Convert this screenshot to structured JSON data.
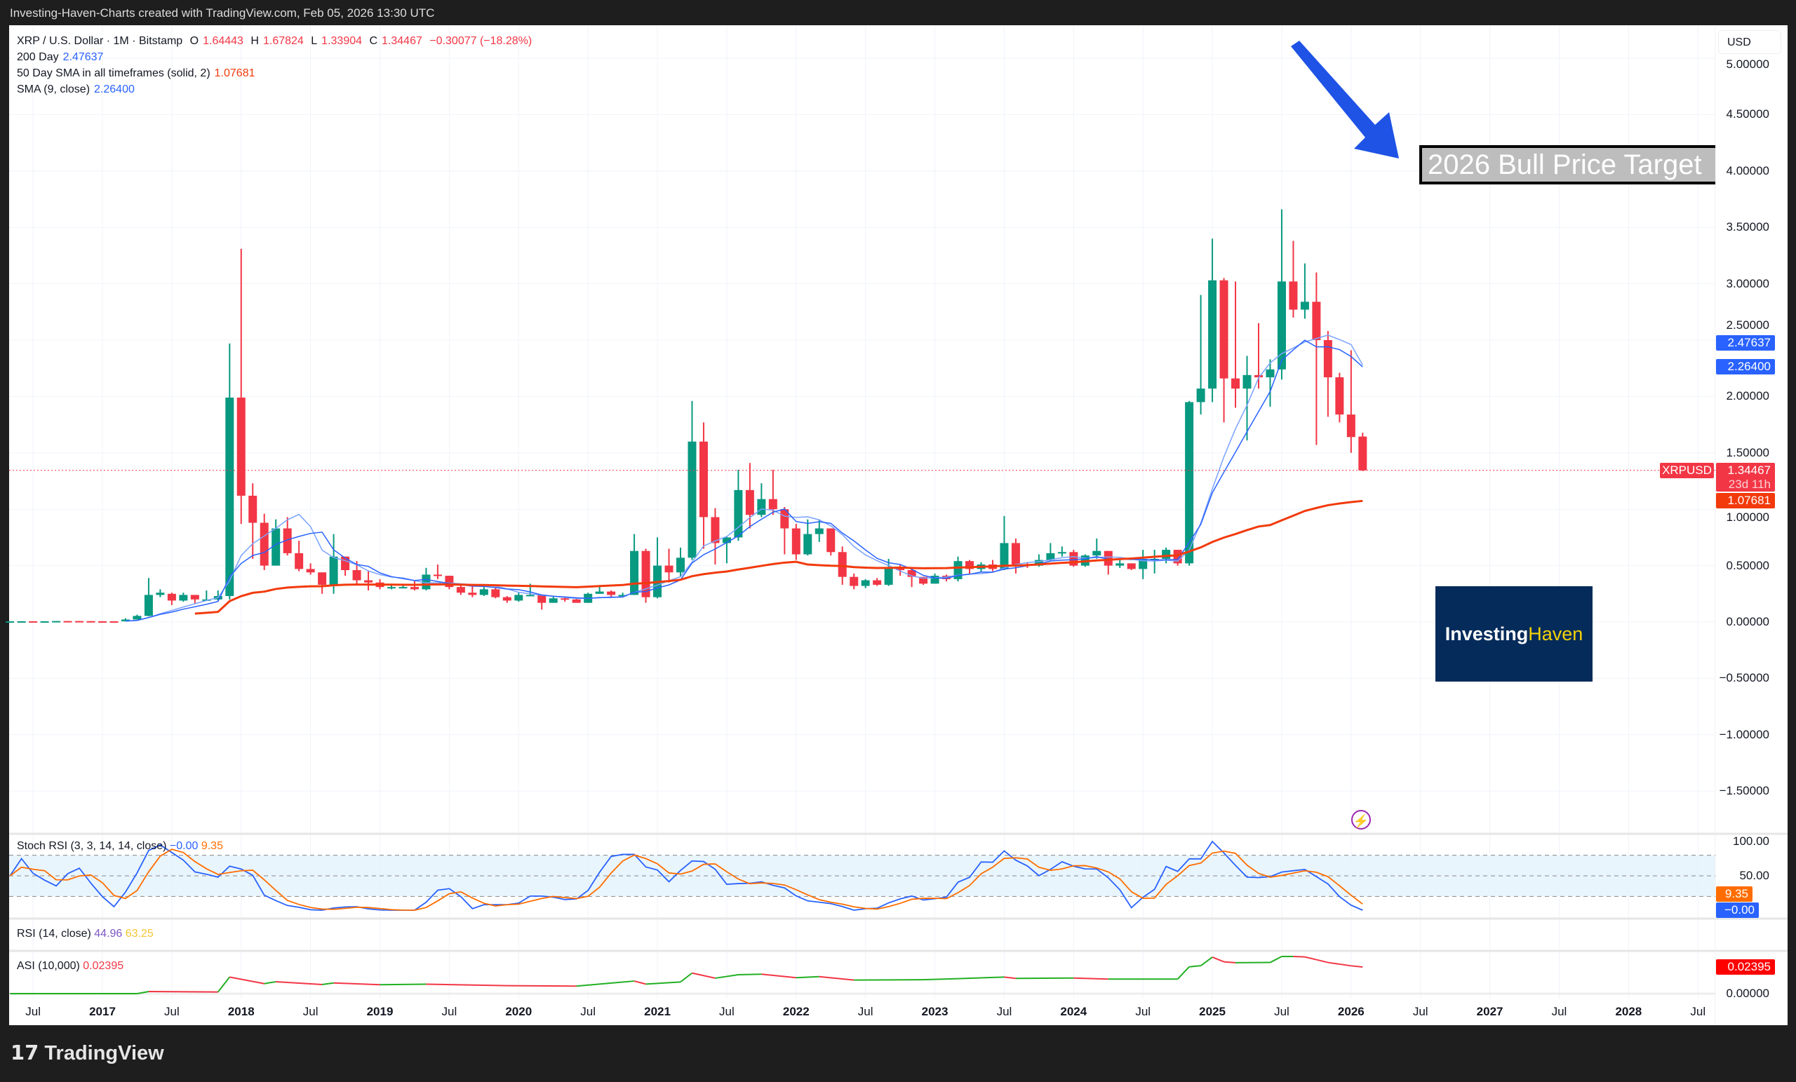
{
  "header": {
    "attribution": "Investing-Haven-Charts created with TradingView.com, Feb 05, 2026 13:30 UTC"
  },
  "legend": {
    "symbol": "XRP / U.S. Dollar · 1M · Bitstamp",
    "o_label": "O",
    "o": "1.64443",
    "h_label": "H",
    "h": "1.67824",
    "l_label": "L",
    "l": "1.33904",
    "c_label": "C",
    "c": "1.34467",
    "change": "−0.30077 (−18.28%)",
    "ind1_name": "200 Day",
    "ind1_value": "2.47637",
    "ind2_name": "50 Day SMA in all timeframes (solid, 2)",
    "ind2_value": "1.07681",
    "ind3_name": "SMA (9, close)",
    "ind3_value": "2.26400"
  },
  "price_axis": {
    "currency": "USD",
    "ticks": [
      "5.00000",
      "4.50000",
      "4.00000",
      "3.50000",
      "3.00000",
      "2.50000",
      "2.00000",
      "1.50000",
      "1.00000",
      "0.50000",
      "0.00000",
      "−0.50000",
      "−1.00000",
      "−1.50000"
    ],
    "tags": {
      "ma200": "2.47637",
      "sma9": "2.26400",
      "symbol": "XRPUSD",
      "last": "1.34467",
      "countdown": "23d 11h",
      "sma50": "1.07681"
    }
  },
  "annotations": {
    "target_text": "2026 Bull Price Target",
    "logo_part1": "Investing",
    "logo_part2": "Haven",
    "arrow_color": "#1f53e6"
  },
  "stoch_rsi": {
    "label": "Stoch RSI (3, 3, 14, 14, close)",
    "k": "−0.00",
    "d": "9.35",
    "ticks": [
      "100.00",
      "50.00"
    ],
    "tag_d": "9.35",
    "tag_k": "−0.00"
  },
  "rsi": {
    "label": "RSI (14, close)",
    "v1": "44.96",
    "v2": "63.25"
  },
  "asi": {
    "label": "ASI (10,000)",
    "value": "0.02395",
    "tick": "0.00000",
    "tag": "0.02395"
  },
  "time_axis": [
    {
      "t": "Jul",
      "m": -6
    },
    {
      "t": "2017",
      "m": 0,
      "yr": true
    },
    {
      "t": "Jul",
      "m": 6
    },
    {
      "t": "2018",
      "m": 12,
      "yr": true
    },
    {
      "t": "Jul",
      "m": 18
    },
    {
      "t": "2019",
      "m": 24,
      "yr": true
    },
    {
      "t": "Jul",
      "m": 30
    },
    {
      "t": "2020",
      "m": 36,
      "yr": true
    },
    {
      "t": "Jul",
      "m": 42
    },
    {
      "t": "2021",
      "m": 48,
      "yr": true
    },
    {
      "t": "Jul",
      "m": 54
    },
    {
      "t": "2022",
      "m": 60,
      "yr": true
    },
    {
      "t": "Jul",
      "m": 66
    },
    {
      "t": "2023",
      "m": 72,
      "yr": true
    },
    {
      "t": "Jul",
      "m": 78
    },
    {
      "t": "2024",
      "m": 84,
      "yr": true
    },
    {
      "t": "Jul",
      "m": 90
    },
    {
      "t": "2025",
      "m": 96,
      "yr": true
    },
    {
      "t": "Jul",
      "m": 102
    },
    {
      "t": "2026",
      "m": 108,
      "yr": true
    },
    {
      "t": "Jul",
      "m": 114
    },
    {
      "t": "2027",
      "m": 120,
      "yr": true
    },
    {
      "t": "Jul",
      "m": 126
    },
    {
      "t": "2028",
      "m": 132,
      "yr": true
    },
    {
      "t": "Jul",
      "m": 138
    }
  ],
  "footer": {
    "brand": "TradingView"
  },
  "colors": {
    "up": "#089981",
    "down": "#f23645",
    "ma200": "#7aa2ff",
    "sma9": "#2962ff",
    "sma50": "#f23a0c",
    "stoch_k": "#2962ff",
    "stoch_d": "#ff6d00"
  },
  "chart_data": {
    "type": "candlestick",
    "interval": "1M",
    "ylim": [
      -1.75,
      5.1
    ],
    "grid": true,
    "ohlc": [
      [
        "2016-05",
        0.006,
        0.0063,
        0.0055,
        0.006
      ],
      [
        "2016-06",
        0.006,
        0.0068,
        0.0055,
        0.0065
      ],
      [
        "2016-07",
        0.0065,
        0.0067,
        0.0056,
        0.0061
      ],
      [
        "2016-08",
        0.0061,
        0.0066,
        0.0058,
        0.0062
      ],
      [
        "2016-09",
        0.0062,
        0.0087,
        0.0061,
        0.0084
      ],
      [
        "2016-10",
        0.0084,
        0.0094,
        0.008,
        0.0082
      ],
      [
        "2016-11",
        0.0082,
        0.0096,
        0.0072,
        0.0077
      ],
      [
        "2016-12",
        0.0077,
        0.0078,
        0.0061,
        0.0065
      ],
      [
        "2017-01",
        0.0065,
        0.0075,
        0.0058,
        0.0063
      ],
      [
        "2017-02",
        0.0063,
        0.0067,
        0.0055,
        0.0059
      ],
      [
        "2017-03",
        0.0059,
        0.033,
        0.0058,
        0.022
      ],
      [
        "2017-04",
        0.022,
        0.065,
        0.021,
        0.054
      ],
      [
        "2017-05",
        0.054,
        0.39,
        0.05,
        0.24
      ],
      [
        "2017-06",
        0.24,
        0.29,
        0.22,
        0.26
      ],
      [
        "2017-07",
        0.25,
        0.26,
        0.15,
        0.19
      ],
      [
        "2017-08",
        0.19,
        0.26,
        0.18,
        0.24
      ],
      [
        "2017-09",
        0.24,
        0.24,
        0.16,
        0.2
      ],
      [
        "2017-10",
        0.2,
        0.28,
        0.19,
        0.2
      ],
      [
        "2017-11",
        0.2,
        0.28,
        0.19,
        0.23
      ],
      [
        "2017-12",
        0.23,
        2.47,
        0.2,
        1.99
      ],
      [
        "2018-01",
        1.99,
        3.31,
        0.87,
        1.12
      ],
      [
        "2018-02",
        1.12,
        1.23,
        0.56,
        0.88
      ],
      [
        "2018-03",
        0.88,
        0.96,
        0.46,
        0.5
      ],
      [
        "2018-04",
        0.5,
        0.91,
        0.5,
        0.83
      ],
      [
        "2018-05",
        0.83,
        0.93,
        0.59,
        0.61
      ],
      [
        "2018-06",
        0.61,
        0.72,
        0.45,
        0.47
      ],
      [
        "2018-07",
        0.47,
        0.52,
        0.42,
        0.44
      ],
      [
        "2018-08",
        0.44,
        0.44,
        0.25,
        0.33
      ],
      [
        "2018-09",
        0.33,
        0.78,
        0.25,
        0.58
      ],
      [
        "2018-10",
        0.58,
        0.58,
        0.41,
        0.46
      ],
      [
        "2018-11",
        0.46,
        0.54,
        0.34,
        0.37
      ],
      [
        "2018-12",
        0.37,
        0.45,
        0.28,
        0.35
      ],
      [
        "2019-01",
        0.35,
        0.38,
        0.29,
        0.31
      ],
      [
        "2019-02",
        0.31,
        0.34,
        0.29,
        0.31
      ],
      [
        "2019-03",
        0.31,
        0.33,
        0.3,
        0.31
      ],
      [
        "2019-04",
        0.31,
        0.37,
        0.28,
        0.29
      ],
      [
        "2019-05",
        0.29,
        0.48,
        0.28,
        0.42
      ],
      [
        "2019-06",
        0.42,
        0.51,
        0.38,
        0.41
      ],
      [
        "2019-07",
        0.41,
        0.41,
        0.29,
        0.31
      ],
      [
        "2019-08",
        0.31,
        0.33,
        0.24,
        0.26
      ],
      [
        "2019-09",
        0.26,
        0.32,
        0.22,
        0.24
      ],
      [
        "2019-10",
        0.24,
        0.31,
        0.23,
        0.29
      ],
      [
        "2019-11",
        0.29,
        0.31,
        0.21,
        0.22
      ],
      [
        "2019-12",
        0.22,
        0.23,
        0.17,
        0.19
      ],
      [
        "2020-01",
        0.19,
        0.26,
        0.18,
        0.24
      ],
      [
        "2020-02",
        0.24,
        0.34,
        0.23,
        0.24
      ],
      [
        "2020-03",
        0.24,
        0.24,
        0.11,
        0.17
      ],
      [
        "2020-04",
        0.17,
        0.23,
        0.17,
        0.21
      ],
      [
        "2020-05",
        0.21,
        0.22,
        0.18,
        0.2
      ],
      [
        "2020-06",
        0.2,
        0.21,
        0.17,
        0.17
      ],
      [
        "2020-07",
        0.17,
        0.26,
        0.17,
        0.25
      ],
      [
        "2020-08",
        0.25,
        0.32,
        0.25,
        0.27
      ],
      [
        "2020-09",
        0.27,
        0.28,
        0.22,
        0.24
      ],
      [
        "2020-10",
        0.24,
        0.26,
        0.23,
        0.24
      ],
      [
        "2020-11",
        0.24,
        0.78,
        0.24,
        0.63
      ],
      [
        "2020-12",
        0.63,
        0.65,
        0.17,
        0.22
      ],
      [
        "2021-01",
        0.22,
        0.75,
        0.21,
        0.5
      ],
      [
        "2021-02",
        0.5,
        0.65,
        0.35,
        0.44
      ],
      [
        "2021-03",
        0.44,
        0.66,
        0.4,
        0.57
      ],
      [
        "2021-04",
        0.57,
        1.96,
        0.55,
        1.6
      ],
      [
        "2021-05",
        1.6,
        1.77,
        0.65,
        0.93
      ],
      [
        "2021-06",
        0.93,
        1.01,
        0.51,
        0.7
      ],
      [
        "2021-07",
        0.7,
        0.76,
        0.52,
        0.75
      ],
      [
        "2021-08",
        0.75,
        1.35,
        0.72,
        1.17
      ],
      [
        "2021-09",
        1.17,
        1.41,
        0.83,
        0.95
      ],
      [
        "2021-10",
        0.95,
        1.23,
        0.93,
        1.09
      ],
      [
        "2021-11",
        1.09,
        1.35,
        0.95,
        1.0
      ],
      [
        "2021-12",
        1.0,
        1.02,
        0.6,
        0.83
      ],
      [
        "2022-01",
        0.83,
        0.87,
        0.55,
        0.6
      ],
      [
        "2022-02",
        0.6,
        0.91,
        0.59,
        0.78
      ],
      [
        "2022-03",
        0.78,
        0.91,
        0.71,
        0.83
      ],
      [
        "2022-04",
        0.83,
        0.83,
        0.59,
        0.62
      ],
      [
        "2022-05",
        0.62,
        0.67,
        0.33,
        0.4
      ],
      [
        "2022-06",
        0.4,
        0.43,
        0.29,
        0.32
      ],
      [
        "2022-07",
        0.32,
        0.38,
        0.3,
        0.37
      ],
      [
        "2022-08",
        0.37,
        0.39,
        0.32,
        0.33
      ],
      [
        "2022-09",
        0.33,
        0.56,
        0.32,
        0.48
      ],
      [
        "2022-10",
        0.48,
        0.51,
        0.41,
        0.46
      ],
      [
        "2022-11",
        0.46,
        0.48,
        0.31,
        0.4
      ],
      [
        "2022-12",
        0.4,
        0.4,
        0.33,
        0.34
      ],
      [
        "2023-01",
        0.34,
        0.43,
        0.34,
        0.41
      ],
      [
        "2023-02",
        0.41,
        0.42,
        0.36,
        0.38
      ],
      [
        "2023-03",
        0.38,
        0.58,
        0.36,
        0.54
      ],
      [
        "2023-04",
        0.54,
        0.55,
        0.42,
        0.47
      ],
      [
        "2023-05",
        0.47,
        0.53,
        0.44,
        0.51
      ],
      [
        "2023-06",
        0.51,
        0.55,
        0.45,
        0.47
      ],
      [
        "2023-07",
        0.47,
        0.94,
        0.46,
        0.7
      ],
      [
        "2023-08",
        0.7,
        0.74,
        0.43,
        0.51
      ],
      [
        "2023-09",
        0.51,
        0.53,
        0.48,
        0.5
      ],
      [
        "2023-10",
        0.5,
        0.6,
        0.49,
        0.55
      ],
      [
        "2023-11",
        0.55,
        0.7,
        0.54,
        0.61
      ],
      [
        "2023-12",
        0.61,
        0.67,
        0.58,
        0.62
      ],
      [
        "2024-01",
        0.62,
        0.64,
        0.49,
        0.5
      ],
      [
        "2024-02",
        0.5,
        0.6,
        0.49,
        0.59
      ],
      [
        "2024-03",
        0.59,
        0.74,
        0.56,
        0.63
      ],
      [
        "2024-04",
        0.63,
        0.63,
        0.42,
        0.5
      ],
      [
        "2024-05",
        0.5,
        0.55,
        0.48,
        0.52
      ],
      [
        "2024-06",
        0.52,
        0.52,
        0.46,
        0.47
      ],
      [
        "2024-07",
        0.47,
        0.64,
        0.38,
        0.56
      ],
      [
        "2024-08",
        0.56,
        0.64,
        0.43,
        0.56
      ],
      [
        "2024-09",
        0.56,
        0.66,
        0.52,
        0.64
      ],
      [
        "2024-10",
        0.64,
        0.64,
        0.5,
        0.52
      ],
      [
        "2024-11",
        0.52,
        1.96,
        0.5,
        1.95
      ],
      [
        "2024-12",
        1.95,
        2.9,
        1.84,
        2.07
      ],
      [
        "2025-01",
        2.07,
        3.4,
        1.95,
        3.03
      ],
      [
        "2025-02",
        3.03,
        3.05,
        1.77,
        2.16
      ],
      [
        "2025-03",
        2.16,
        3.02,
        1.9,
        2.07
      ],
      [
        "2025-04",
        2.07,
        2.36,
        1.61,
        2.19
      ],
      [
        "2025-05",
        2.19,
        2.65,
        2.07,
        2.17
      ],
      [
        "2025-06",
        2.17,
        2.33,
        1.91,
        2.24
      ],
      [
        "2025-07",
        2.24,
        3.66,
        2.15,
        3.02
      ],
      [
        "2025-08",
        3.02,
        3.38,
        2.7,
        2.77
      ],
      [
        "2025-09",
        2.77,
        3.18,
        2.69,
        2.84
      ],
      [
        "2025-10",
        2.84,
        3.1,
        1.57,
        2.5
      ],
      [
        "2025-11",
        2.5,
        2.58,
        1.82,
        2.17
      ],
      [
        "2025-12",
        2.17,
        2.21,
        1.77,
        1.84
      ],
      [
        "2026-01",
        1.84,
        2.41,
        1.5,
        1.64
      ],
      [
        "2026-02",
        1.64443,
        1.67824,
        1.33904,
        1.34467
      ]
    ],
    "indicators": {
      "ma200_last": 2.47637,
      "sma9_last": 2.264,
      "sma50_last": 1.07681,
      "stoch_k_last": -0.0,
      "stoch_d_last": 9.35,
      "stoch_bands": [
        20,
        50,
        80
      ]
    },
    "asi_series": [
      [
        "2016-05",
        0
      ],
      [
        "2017-04",
        0
      ],
      [
        "2017-05",
        0.0019
      ],
      [
        "2017-11",
        0.0015
      ],
      [
        "2017-12",
        0.0149
      ],
      [
        "2018-03",
        0.009
      ],
      [
        "2018-04",
        0.0107
      ],
      [
        "2018-08",
        0.0082
      ],
      [
        "2018-09",
        0.0096
      ],
      [
        "2019-01",
        0.008
      ],
      [
        "2019-05",
        0.0085
      ],
      [
        "2019-12",
        0.0072
      ],
      [
        "2020-06",
        0.0068
      ],
      [
        "2020-11",
        0.0113
      ],
      [
        "2020-12",
        0.0086
      ],
      [
        "2021-03",
        0.0105
      ],
      [
        "2021-04",
        0.0185
      ],
      [
        "2021-06",
        0.0139
      ],
      [
        "2021-08",
        0.017
      ],
      [
        "2021-10",
        0.0175
      ],
      [
        "2022-01",
        0.0143
      ],
      [
        "2022-03",
        0.0153
      ],
      [
        "2022-06",
        0.0122
      ],
      [
        "2022-12",
        0.0125
      ],
      [
        "2023-03",
        0.0135
      ],
      [
        "2023-07",
        0.0149
      ],
      [
        "2023-08",
        0.0137
      ],
      [
        "2024-01",
        0.014
      ],
      [
        "2024-04",
        0.0131
      ],
      [
        "2024-10",
        0.0131
      ],
      [
        "2024-11",
        0.0241
      ],
      [
        "2024-12",
        0.0251
      ],
      [
        "2025-01",
        0.0328
      ],
      [
        "2025-02",
        0.0286
      ],
      [
        "2025-03",
        0.0278
      ],
      [
        "2025-06",
        0.028
      ],
      [
        "2025-07",
        0.0334
      ],
      [
        "2025-08",
        0.0334
      ],
      [
        "2025-09",
        0.033
      ],
      [
        "2025-10",
        0.0305
      ],
      [
        "2025-11",
        0.028
      ],
      [
        "2025-12",
        0.0265
      ],
      [
        "2026-01",
        0.025
      ],
      [
        "2026-02",
        0.02395
      ]
    ]
  }
}
